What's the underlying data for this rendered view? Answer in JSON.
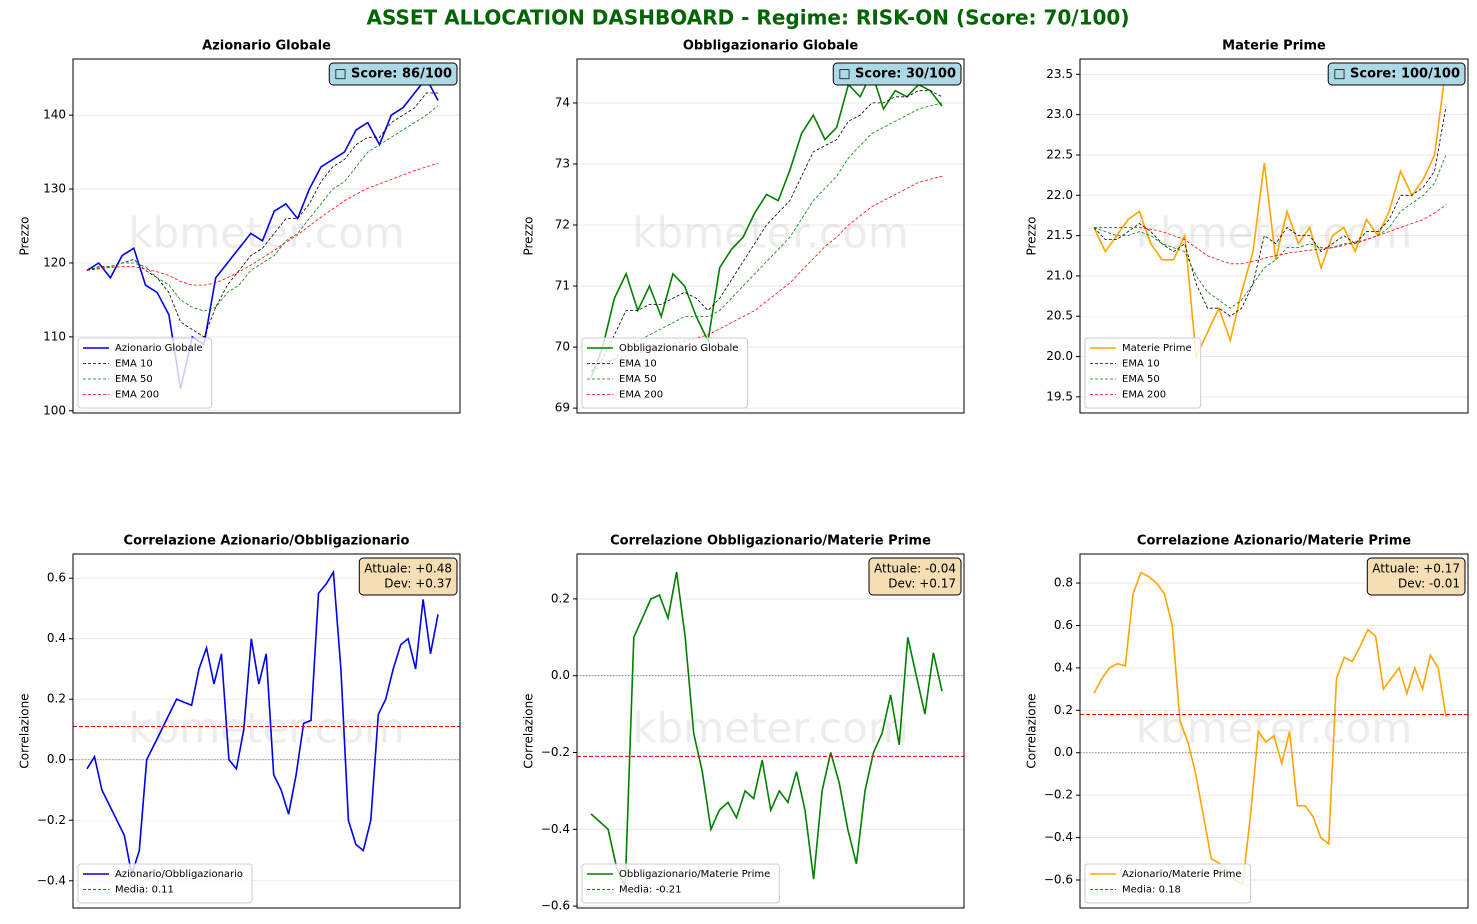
{
  "title": "ASSET ALLOCATION DASHBOARD - Regime: RISK-ON  (Score: 70/100)",
  "chart_data": [
    {
      "type": "line",
      "title": "Azionario Globale",
      "ylabel": "Prezzo",
      "watermark": "kbmeter.com",
      "badge": "□ Score: 86/100",
      "badge_color": "#add8e6",
      "ylim": [
        99.7,
        147.6
      ],
      "yticks": [
        100,
        110,
        120,
        130,
        140
      ],
      "grid": true,
      "legend": "lower left",
      "series": [
        {
          "name": "Azionario Globale",
          "color": "#0000ee",
          "style": "solid",
          "values": [
            119,
            120,
            118,
            121,
            122,
            117,
            116,
            113,
            103,
            110,
            109,
            118,
            120,
            122,
            124,
            123,
            127,
            128,
            126,
            130,
            133,
            134,
            135,
            138,
            139,
            136,
            140,
            141,
            143,
            145,
            142
          ]
        },
        {
          "name": "EMA 10",
          "color": "#000000",
          "style": "dashed",
          "values": [
            119,
            119.5,
            119.5,
            120,
            120.5,
            119,
            118,
            116,
            112,
            111,
            110,
            114,
            117,
            119,
            121,
            122,
            124,
            126,
            126,
            128,
            131,
            133,
            134,
            136,
            137,
            137,
            139,
            140,
            141,
            143,
            143
          ]
        },
        {
          "name": "EMA 50",
          "color": "#008000",
          "style": "dashed",
          "values": [
            119,
            119.3,
            119.5,
            120,
            120,
            119.5,
            118,
            117,
            115,
            114,
            113.5,
            114,
            116,
            117,
            119,
            120,
            121,
            123,
            124,
            126,
            128,
            130,
            131,
            133,
            135,
            136,
            137,
            138,
            139,
            140,
            141.3
          ]
        },
        {
          "name": "EMA 200",
          "color": "#ff0000",
          "style": "dashed",
          "values": [
            119,
            119.2,
            119.4,
            119.5,
            119.5,
            119.2,
            118.8,
            118.3,
            117.5,
            117,
            117,
            117.3,
            118,
            118.8,
            119.7,
            120.7,
            121.7,
            122.8,
            123.8,
            125,
            126.2,
            127.3,
            128.4,
            129.3,
            130.1,
            130.7,
            131.3,
            131.9,
            132.5,
            133,
            133.5
          ]
        }
      ]
    },
    {
      "type": "line",
      "title": "Obbligazionario Globale",
      "ylabel": "Prezzo",
      "watermark": "kbmeter.com",
      "badge": "□ Score: 30/100",
      "badge_color": "#add8e6",
      "ylim": [
        68.92,
        74.72
      ],
      "yticks": [
        69,
        70,
        71,
        72,
        73,
        74
      ],
      "grid": true,
      "legend": "lower left",
      "series": [
        {
          "name": "Obbligazionario Globale",
          "color": "#007f00",
          "style": "solid",
          "values": [
            69.5,
            70,
            70.8,
            71.2,
            70.6,
            71,
            70.5,
            71.2,
            71,
            70.5,
            70.1,
            71.3,
            71.6,
            71.8,
            72.2,
            72.5,
            72.4,
            72.9,
            73.5,
            73.8,
            73.4,
            73.6,
            74.3,
            74.1,
            74.5,
            73.9,
            74.2,
            74.1,
            74.3,
            74.2,
            73.95
          ]
        },
        {
          "name": "EMA 10",
          "color": "#000000",
          "style": "dashed",
          "values": [
            69.6,
            69.8,
            70.2,
            70.6,
            70.6,
            70.7,
            70.7,
            70.8,
            70.9,
            70.8,
            70.6,
            70.8,
            71.1,
            71.4,
            71.7,
            72,
            72.2,
            72.4,
            72.8,
            73.2,
            73.3,
            73.4,
            73.7,
            73.8,
            74,
            74,
            74.1,
            74.1,
            74.2,
            74.2,
            74.1
          ]
        },
        {
          "name": "EMA 50",
          "color": "#008000",
          "style": "dashed",
          "values": [
            69.6,
            69.7,
            69.8,
            70,
            70.1,
            70.2,
            70.3,
            70.4,
            70.5,
            70.5,
            70.5,
            70.6,
            70.8,
            71,
            71.2,
            71.4,
            71.6,
            71.8,
            72.1,
            72.4,
            72.6,
            72.8,
            73.1,
            73.3,
            73.5,
            73.6,
            73.7,
            73.8,
            73.9,
            73.95,
            74
          ]
        },
        {
          "name": "EMA 200",
          "color": "#ff0000",
          "style": "dashed",
          "values": [
            69.7,
            69.75,
            69.8,
            69.85,
            69.9,
            69.95,
            70,
            70.05,
            70.1,
            70.15,
            70.2,
            70.3,
            70.4,
            70.5,
            70.6,
            70.75,
            70.9,
            71.05,
            71.25,
            71.45,
            71.65,
            71.8,
            72,
            72.15,
            72.3,
            72.4,
            72.5,
            72.6,
            72.7,
            72.75,
            72.8
          ]
        }
      ]
    },
    {
      "type": "line",
      "title": "Materie Prime",
      "ylabel": "Prezzo",
      "watermark": "kbmeter.com",
      "badge": "□ Score: 100/100",
      "badge_color": "#add8e6",
      "ylim": [
        19.3,
        23.69
      ],
      "yticks": [
        19.5,
        {
          "value": 20,
          "label": "20.0"
        },
        20.5,
        {
          "value": 21,
          "label": "21.0"
        },
        21.5,
        {
          "value": 22,
          "label": "22.0"
        },
        22.5,
        {
          "value": 23,
          "label": "23.0"
        },
        23.5
      ],
      "grid": true,
      "legend": "lower left",
      "series": [
        {
          "name": "Materie Prime",
          "color": "#ffa500",
          "style": "solid",
          "values": [
            21.6,
            21.3,
            21.5,
            21.7,
            21.8,
            21.4,
            21.2,
            21.2,
            21.5,
            20.0,
            20.3,
            20.6,
            20.2,
            20.8,
            21.3,
            22.4,
            21.2,
            21.8,
            21.4,
            21.6,
            21.1,
            21.5,
            21.6,
            21.3,
            21.7,
            21.5,
            21.8,
            22.3,
            22.0,
            22.2,
            22.5,
            23.6
          ]
        },
        {
          "name": "EMA 10",
          "color": "#000000",
          "style": "dashed",
          "values": [
            21.6,
            21.45,
            21.45,
            21.55,
            21.65,
            21.55,
            21.4,
            21.3,
            21.4,
            20.9,
            20.6,
            20.6,
            20.5,
            20.6,
            20.9,
            21.5,
            21.4,
            21.6,
            21.5,
            21.5,
            21.3,
            21.4,
            21.5,
            21.4,
            21.55,
            21.55,
            21.7,
            22.0,
            22.0,
            22.1,
            22.3,
            23.1
          ]
        },
        {
          "name": "EMA 50",
          "color": "#008000",
          "style": "dashed",
          "values": [
            21.6,
            21.55,
            21.5,
            21.5,
            21.55,
            21.5,
            21.4,
            21.35,
            21.3,
            21.0,
            20.8,
            20.7,
            20.6,
            20.7,
            20.9,
            21.1,
            21.2,
            21.35,
            21.35,
            21.4,
            21.35,
            21.35,
            21.4,
            21.4,
            21.45,
            21.5,
            21.6,
            21.8,
            21.9,
            22,
            22.15,
            22.5
          ]
        },
        {
          "name": "EMA 200",
          "color": "#ff0000",
          "style": "dashed",
          "values": [
            21.6,
            21.6,
            21.6,
            21.6,
            21.6,
            21.58,
            21.55,
            21.5,
            21.45,
            21.35,
            21.25,
            21.2,
            21.15,
            21.15,
            21.18,
            21.22,
            21.25,
            21.28,
            21.3,
            21.32,
            21.33,
            21.35,
            21.38,
            21.42,
            21.45,
            21.5,
            21.55,
            21.6,
            21.65,
            21.7,
            21.78,
            21.88
          ]
        }
      ]
    },
    {
      "type": "line",
      "title": "Correlazione Azionario/Obbligazionario",
      "ylabel": "Correlazione",
      "watermark": "kbmeter.com",
      "note": [
        "Attuale: +0.48",
        "Dev: +0.37"
      ],
      "note_color": "#f5deb3",
      "reference": 0,
      "ylim": [
        -0.49,
        0.68
      ],
      "yticks": [
        {
          "value": -0.4,
          "label": "−0.4"
        },
        {
          "value": -0.2,
          "label": "−0.2"
        },
        {
          "value": 0,
          "label": "0.0"
        },
        0.2,
        0.4,
        0.6
      ],
      "grid": true,
      "legend": "lower left",
      "series": [
        {
          "name": "Azionario/Obbligazionario",
          "color": "#0000ee",
          "style": "solid",
          "values": [
            -0.03,
            0.01,
            -0.1,
            -0.15,
            -0.2,
            -0.25,
            -0.38,
            -0.3,
            0.0,
            0.05,
            0.1,
            0.15,
            0.2,
            0.19,
            0.18,
            0.3,
            0.37,
            0.25,
            0.35,
            0.0,
            -0.03,
            0.1,
            0.4,
            0.25,
            0.35,
            -0.05,
            -0.1,
            -0.18,
            -0.05,
            0.12,
            0.13,
            0.55,
            0.58,
            0.62,
            0.3,
            -0.2,
            -0.28,
            -0.3,
            -0.2,
            0.15,
            0.2,
            0.3,
            0.38,
            0.4,
            0.3,
            0.53,
            0.35,
            0.48
          ]
        }
      ],
      "hline": {
        "name": "Media: 0.11",
        "value": 0.11,
        "color": "#ff0000"
      }
    },
    {
      "type": "line",
      "title": "Correlazione Obbligazionario/Materie Prime",
      "ylabel": "Correlazione",
      "watermark": "kbmeter.com",
      "note": [
        "Attuale: -0.04",
        "Dev: +0.17"
      ],
      "note_color": "#f5deb3",
      "reference": 0,
      "ylim": [
        -0.605,
        0.317
      ],
      "yticks": [
        {
          "value": -0.6,
          "label": "−0.6"
        },
        {
          "value": -0.4,
          "label": "−0.4"
        },
        {
          "value": -0.2,
          "label": "−0.2"
        },
        {
          "value": 0,
          "label": "0.0"
        },
        0.2
      ],
      "grid": true,
      "legend": "lower left",
      "series": [
        {
          "name": "Obbligazionario/Materie Prime",
          "color": "#007f00",
          "style": "solid",
          "values": [
            -0.36,
            -0.38,
            -0.4,
            -0.5,
            -0.55,
            0.1,
            0.15,
            0.2,
            0.21,
            0.15,
            0.27,
            0.1,
            -0.15,
            -0.25,
            -0.4,
            -0.35,
            -0.33,
            -0.37,
            -0.3,
            -0.32,
            -0.22,
            -0.35,
            -0.3,
            -0.33,
            -0.25,
            -0.35,
            -0.53,
            -0.3,
            -0.2,
            -0.28,
            -0.4,
            -0.49,
            -0.3,
            -0.2,
            -0.15,
            -0.05,
            -0.18,
            0.1,
            0.0,
            -0.1,
            0.06,
            -0.04
          ]
        }
      ],
      "hline": {
        "name": "Media: -0.21",
        "value": -0.21,
        "color": "#ff0000"
      }
    },
    {
      "type": "line",
      "title": "Correlazione Azionario/Materie Prime",
      "ylabel": "Correlazione",
      "watermark": "kbmeter.com",
      "note": [
        "Attuale: +0.17",
        "Dev: -0.01"
      ],
      "note_color": "#f5deb3",
      "reference": 0,
      "ylim": [
        -0.732,
        0.937
      ],
      "yticks": [
        {
          "value": -0.6,
          "label": "−0.6"
        },
        {
          "value": -0.4,
          "label": "−0.4"
        },
        {
          "value": -0.2,
          "label": "−0.2"
        },
        {
          "value": 0,
          "label": "0.0"
        },
        0.2,
        0.4,
        0.6,
        0.8
      ],
      "grid": true,
      "legend": "lower left",
      "series": [
        {
          "name": "Azionario/Materie Prime",
          "color": "#ffa500",
          "style": "solid",
          "values": [
            0.28,
            0.35,
            0.4,
            0.42,
            0.41,
            0.75,
            0.85,
            0.83,
            0.8,
            0.75,
            0.6,
            0.15,
            0.05,
            -0.1,
            -0.3,
            -0.5,
            -0.52,
            -0.55,
            -0.6,
            -0.62,
            -0.3,
            0.1,
            0.05,
            0.08,
            -0.05,
            0.1,
            -0.25,
            -0.25,
            -0.3,
            -0.4,
            -0.43,
            0.35,
            0.45,
            0.43,
            0.5,
            0.58,
            0.55,
            0.3,
            0.35,
            0.4,
            0.28,
            0.4,
            0.3,
            0.46,
            0.4,
            0.17
          ]
        }
      ],
      "hline": {
        "name": "Media: 0.18",
        "value": 0.18,
        "color": "#ff0000"
      }
    }
  ]
}
